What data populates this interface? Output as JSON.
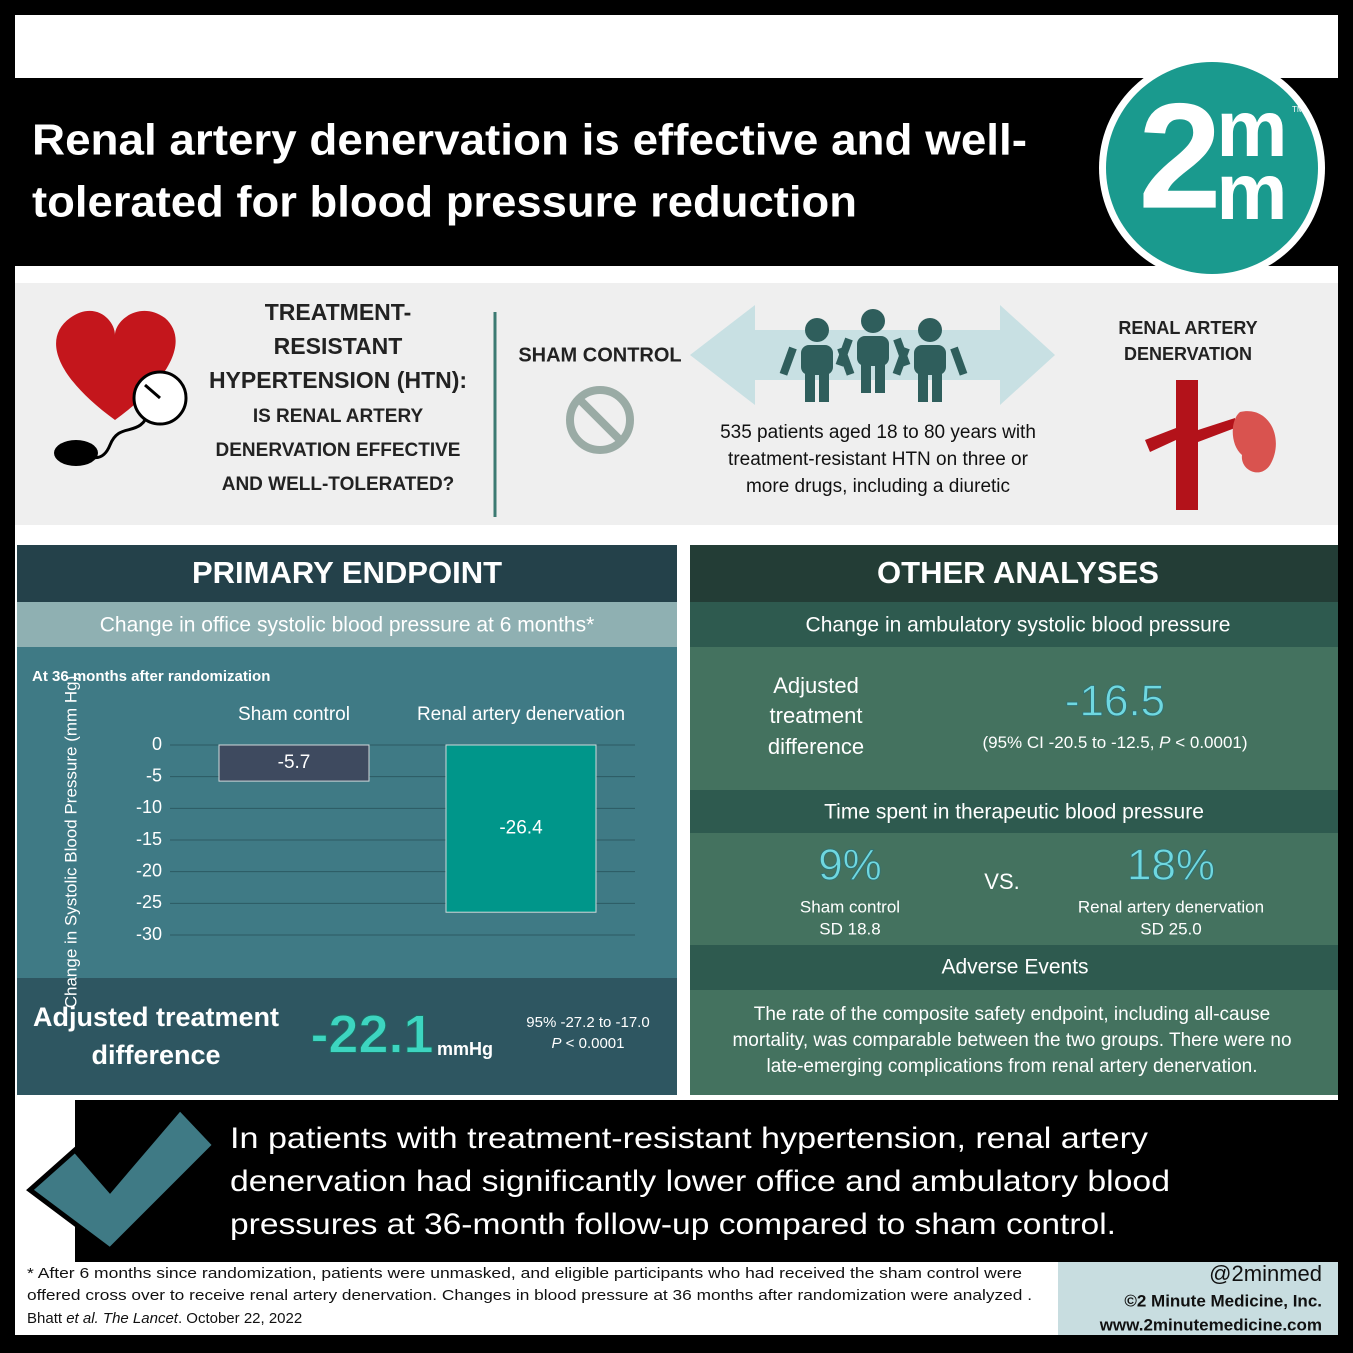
{
  "header": {
    "title": [
      "Renal artery denervation is effective and well-",
      "tolerated for blood pressure reduction"
    ],
    "logo": {
      "digit": "2",
      "top": "m",
      "bottom": "m",
      "mark": "TM"
    }
  },
  "intro": {
    "question": [
      "TREATMENT-",
      "RESISTANT",
      "HYPERTENSION (HTN):",
      "IS RENAL ARTERY",
      "DENERVATION EFFECTIVE",
      "AND WELL-TOLERATED?"
    ],
    "sham_label": "SHAM CONTROL",
    "population": [
      "535 patients aged 18 to 80 years with",
      "treatment-resistant HTN on three or",
      "more drugs, including a diuretic"
    ],
    "rad_label": [
      "RENAL ARTERY",
      "DENERVATION"
    ]
  },
  "primary": {
    "title": "PRIMARY ENDPOINT",
    "subtitle": "Change in office systolic blood pressure at 6 months*",
    "result": {
      "label": [
        "Adjusted treatment",
        "difference"
      ],
      "value": "-22.1",
      "unit": "mmHg",
      "ci": "95% -27.2 to -17.0",
      "p": "P",
      "p_rest": " < 0.0001"
    }
  },
  "chart_data": {
    "type": "bar",
    "subtitle": "At 36 months after randomization",
    "y_label": "Change in Systolic Blood Pressure (mm Hg)",
    "categories": [
      "Sham control",
      "Renal artery denervation"
    ],
    "values": [
      -5.7,
      -26.4
    ],
    "colors": [
      "#3e4a5f",
      "#00968a"
    ],
    "ylim": [
      -30,
      0
    ],
    "yticks": [
      0,
      -5,
      -10,
      -15,
      -20,
      -25,
      -30
    ],
    "grid": true
  },
  "other": {
    "title": "OTHER ANALYSES",
    "ambulatory": {
      "heading": "Change in ambulatory systolic blood pressure",
      "label": [
        "Adjusted",
        "treatment",
        "difference"
      ],
      "value": "-16.5",
      "ci_pre": "(95% CI -20.5 to -12.5, ",
      "p": "P",
      "ci_post": " < 0.0001)"
    },
    "time": {
      "heading": "Time spent in therapeutic blood pressure",
      "sham": {
        "value": "9%",
        "name": "Sham control",
        "sd": "SD 18.8"
      },
      "vs": "VS.",
      "rad": {
        "value": "18%",
        "name": "Renal artery denervation",
        "sd": "SD 25.0"
      }
    },
    "adverse": {
      "heading": "Adverse Events",
      "text": [
        "The rate of the composite safety endpoint, including all-cause",
        "mortality, was comparable between the two groups. There were no",
        "late-emerging complications from renal artery denervation."
      ]
    }
  },
  "conclusion": [
    "In patients with treatment-resistant hypertension, renal artery",
    "denervation had significantly lower office and ambulatory blood",
    "pressures at 36-month follow-up compared to sham control."
  ],
  "footnote": {
    "lines": [
      "* After 6 months since randomization, patients were unmasked, and eligible participants who had received the sham control were",
      "offered cross over to receive renal artery denervation. Changes in blood pressure at 36 months after randomization were analyzed ."
    ],
    "citation": [
      "Bhatt ",
      "et al.",
      " The Lancet",
      ". October 22, 2022"
    ]
  },
  "credits": [
    "@2minmed",
    "©2 Minute Medicine, Inc.",
    "www.2minutemedicine.com"
  ]
}
